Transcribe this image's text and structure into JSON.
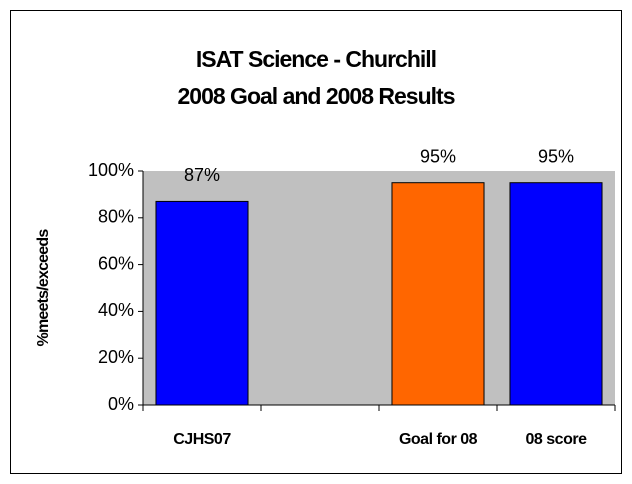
{
  "chart_data": {
    "type": "bar",
    "title": [
      "ISAT Science - Churchill",
      "2008 Goal and 2008 Results"
    ],
    "y_label": "%meets/exceeds",
    "categories": [
      "CJHS07",
      null,
      "Goal for 08",
      "08 score"
    ],
    "values": [
      87,
      null,
      95,
      95
    ],
    "value_labels": [
      "87%",
      null,
      "95%",
      "95%"
    ],
    "colors": [
      "#0000ff",
      null,
      "#ff6600",
      "#0000ff"
    ],
    "ylim": [
      0,
      100
    ],
    "yticks": [
      {
        "value": 0,
        "label": "0%"
      },
      {
        "value": 20,
        "label": "20%"
      },
      {
        "value": 40,
        "label": "40%"
      },
      {
        "value": 60,
        "label": "60%"
      },
      {
        "value": 80,
        "label": "80%"
      },
      {
        "value": 100,
        "label": "100%"
      }
    ],
    "grid": false
  }
}
